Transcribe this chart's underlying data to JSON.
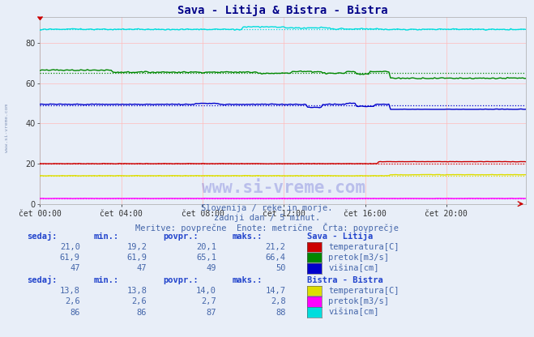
{
  "title": "Sava - Litija & Bistra - Bistra",
  "subtitle1": "Slovenija / reke in morje.",
  "subtitle2": "zadnji dan / 5 minut.",
  "subtitle3": "Meritve: povprečne  Enote: metrične  Črta: povprečje",
  "xlabel_ticks": [
    "čet 00:00",
    "čet 04:00",
    "čet 08:00",
    "čet 12:00",
    "čet 16:00",
    "čet 20:00"
  ],
  "watermark": "www.si-vreme.com",
  "bg_color": "#e8eef8",
  "yticks": [
    0,
    20,
    40,
    60,
    80
  ],
  "ymax": 93,
  "ymin": 0,
  "n_points": 288,
  "sava_temperatura_avg": 20.1,
  "sava_pretok_base": 66.0,
  "sava_pretok_avg": 65.1,
  "sava_visina_avg": 49,
  "bistra_temperatura_avg": 14.0,
  "bistra_pretok_avg": 2.7,
  "bistra_visina_avg": 87,
  "color_sava_temp": "#cc0000",
  "color_sava_pretok": "#008800",
  "color_sava_visina": "#0000cc",
  "color_bistra_temp": "#dddd00",
  "color_bistra_pretok": "#ff00ff",
  "color_bistra_visina": "#00dddd",
  "grid_color": "#ffbbbb",
  "label_color": "#4466aa",
  "label_bold_color": "#2244cc",
  "title_color": "#000088",
  "sava_sedaj": [
    "21,0",
    "61,9",
    "47"
  ],
  "sava_min": [
    "19,2",
    "61,9",
    "47"
  ],
  "sava_povpr": [
    "20,1",
    "65,1",
    "49"
  ],
  "sava_maks": [
    "21,2",
    "66,4",
    "50"
  ],
  "bistra_sedaj": [
    "13,8",
    "2,6",
    "86"
  ],
  "bistra_min": [
    "13,8",
    "2,6",
    "86"
  ],
  "bistra_povpr": [
    "14,0",
    "2,7",
    "87"
  ],
  "bistra_maks": [
    "14,7",
    "2,8",
    "88"
  ]
}
